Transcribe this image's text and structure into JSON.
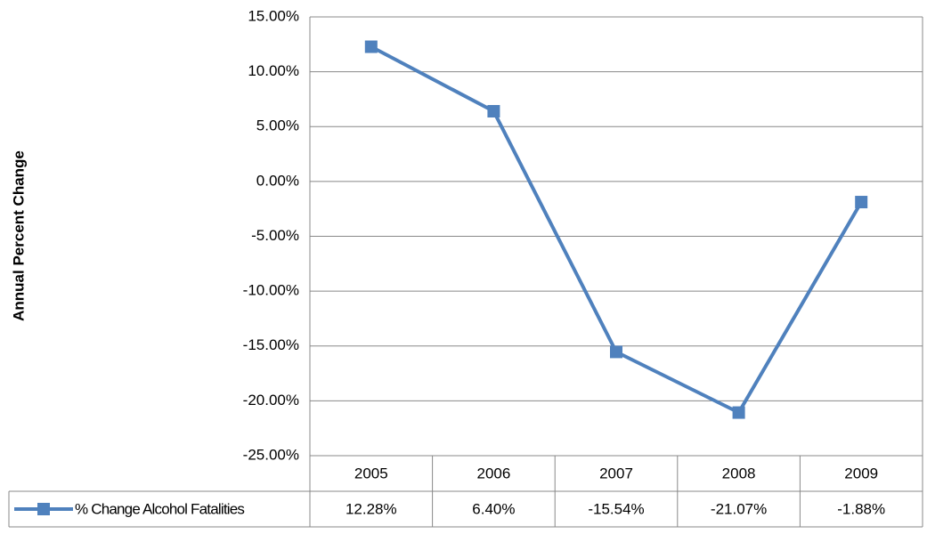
{
  "chart_data": {
    "type": "line",
    "y_label": "Annual Percent Change",
    "categories": [
      "2005",
      "2006",
      "2007",
      "2008",
      "2009"
    ],
    "series": [
      {
        "name": "% Change Alcohol Fatalities",
        "color": "#4f81bd",
        "values": [
          12.28,
          6.4,
          -15.54,
          -21.07,
          -1.88
        ],
        "value_labels": [
          "12.28%",
          "6.40%",
          "-15.54%",
          "-21.07%",
          "-1.88%"
        ]
      }
    ],
    "ylim": [
      -25,
      15
    ],
    "yticks": [
      {
        "value": -25,
        "label": "-25.00%"
      },
      {
        "value": -20,
        "label": "-20.00%"
      },
      {
        "value": -15,
        "label": "-15.00%"
      },
      {
        "value": -10,
        "label": "-10.00%"
      },
      {
        "value": -5,
        "label": "-5.00%"
      },
      {
        "value": 0,
        "label": "0.00%"
      },
      {
        "value": 5,
        "label": "5.00%"
      },
      {
        "value": 10,
        "label": "10.00%"
      },
      {
        "value": 15,
        "label": "15.00%"
      }
    ],
    "grid": true,
    "data_table": true
  }
}
